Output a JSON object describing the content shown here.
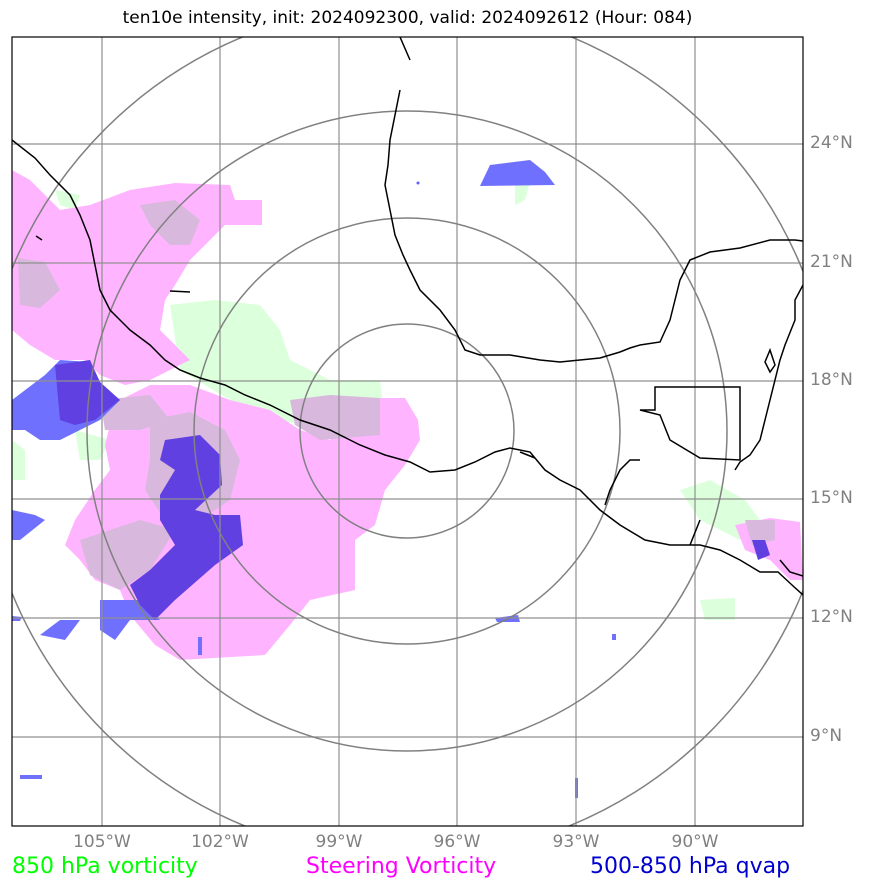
{
  "title": "ten10e intensity, init: 2024092300, valid: 2024092612 (Hour: 084)",
  "lon_labels": [
    "105°W",
    "102°W",
    "99°W",
    "96°W",
    "93°W",
    "90°W"
  ],
  "lat_labels": [
    "24°N",
    "21°N",
    "18°N",
    "15°N",
    "12°N",
    "9°N"
  ],
  "legend": [
    {
      "label": "850 hPa vorticity",
      "color": "#00ff00"
    },
    {
      "label": "Steering Vorticity",
      "color": "#ff00ff"
    },
    {
      "label": "500-850 hPa qvap",
      "color": "#0000cc"
    }
  ],
  "colors": {
    "vorticity_850": "#dcffdc",
    "steering": "#ffb4ff",
    "overlap": "#d8b8dc",
    "qvap": "#7070ff",
    "qvap_overlap": "#6040e0",
    "grid": "#909090",
    "range_rings": "#808080",
    "coast": "#000000"
  }
}
